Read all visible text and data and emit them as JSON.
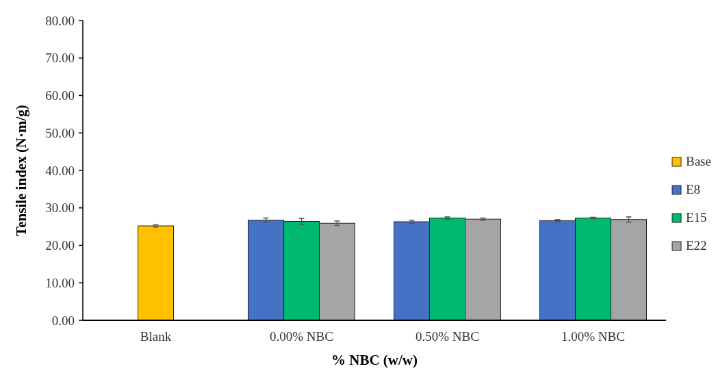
{
  "chart_data": {
    "type": "bar",
    "xlabel": "% NBC (w/w)",
    "ylabel": "Tensile index (N·m/g)",
    "categories": [
      "Blank",
      "0.00% NBC",
      "0.50% NBC",
      "1.00% NBC"
    ],
    "series": [
      {
        "name": "Base",
        "color": "#ffc000",
        "values": [
          25.2,
          null,
          null,
          null
        ],
        "errors": [
          0.3,
          null,
          null,
          null
        ]
      },
      {
        "name": "E8",
        "color": "#4472c4",
        "values": [
          null,
          26.7,
          26.3,
          26.6
        ],
        "errors": [
          null,
          0.6,
          0.4,
          0.3
        ]
      },
      {
        "name": "E15",
        "color": "#00b96f",
        "values": [
          null,
          26.4,
          27.3,
          27.3
        ],
        "errors": [
          null,
          0.8,
          0.3,
          0.2
        ]
      },
      {
        "name": "E22",
        "color": "#a5a5a5",
        "values": [
          null,
          25.9,
          27.0,
          26.9
        ],
        "errors": [
          null,
          0.6,
          0.3,
          0.7
        ]
      }
    ],
    "ylim": [
      0,
      80
    ],
    "yticks": [
      {
        "value": 0,
        "label": "0.00"
      },
      {
        "value": 10,
        "label": "10.00"
      },
      {
        "value": 20,
        "label": "20.00"
      },
      {
        "value": 30,
        "label": "30.00"
      },
      {
        "value": 40,
        "label": "40.00"
      },
      {
        "value": 50,
        "label": "50.00"
      },
      {
        "value": 60,
        "label": "60.00"
      },
      {
        "value": 70,
        "label": "70.00"
      },
      {
        "value": 80,
        "label": "80.00"
      }
    ],
    "legend": "right"
  }
}
